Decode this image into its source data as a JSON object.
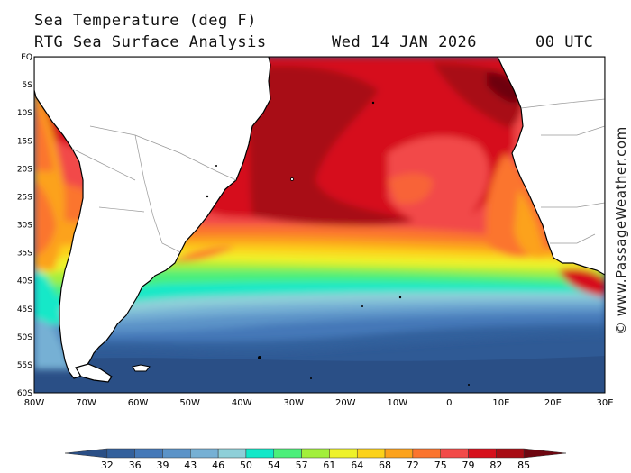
{
  "header": {
    "title": "Sea Temperature (deg F)",
    "subtitle": "RTG Sea Surface Analysis",
    "date": "Wed 14 JAN 2026",
    "time": "00 UTC"
  },
  "watermark": "© www.PassageWeather.com",
  "map": {
    "lat_labels": [
      "EQ",
      "5S",
      "10S",
      "15S",
      "20S",
      "25S",
      "30S",
      "35S",
      "40S",
      "45S",
      "50S",
      "55S",
      "60S"
    ],
    "lon_labels": [
      "80W",
      "70W",
      "60W",
      "50W",
      "40W",
      "30W",
      "20W",
      "10W",
      "0",
      "10E",
      "20E",
      "30E"
    ],
    "land_color": "#ffffff",
    "coast_color": "#000000"
  },
  "colorbar": {
    "values": [
      "32",
      "36",
      "39",
      "43",
      "46",
      "50",
      "54",
      "57",
      "61",
      "64",
      "68",
      "72",
      "75",
      "79",
      "82",
      "85"
    ],
    "colors": [
      "#2a4f86",
      "#33609c",
      "#4478b8",
      "#5b93c8",
      "#76b0d4",
      "#8ecfd8",
      "#12e8c8",
      "#4cef7a",
      "#a2ef3c",
      "#eef22a",
      "#fcd21a",
      "#fca21c",
      "#fb742e",
      "#f24a48",
      "#d6101c",
      "#a80c14",
      "#6e0610"
    ]
  }
}
